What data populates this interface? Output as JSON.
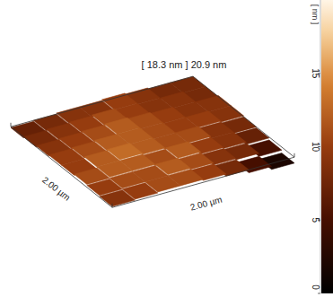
{
  "chart_data": {
    "type": "surface",
    "title": "[ 18.3 nm ] 20.9 nm",
    "x_label": "2.00 µm",
    "y_label": "2.00 µm",
    "cells": [
      [
        7,
        8,
        9,
        9,
        10,
        9,
        8,
        8
      ],
      [
        8,
        9,
        10,
        11,
        10,
        9,
        9,
        8
      ],
      [
        9,
        10,
        11,
        12,
        11,
        10,
        9,
        9
      ],
      [
        10,
        11,
        12,
        12,
        11,
        10,
        10,
        9
      ],
      [
        10,
        12,
        13,
        12,
        11,
        11,
        9,
        8
      ],
      [
        11,
        12,
        12,
        11,
        12,
        10,
        9,
        7
      ],
      [
        10,
        11,
        11,
        12,
        11,
        9,
        8,
        5
      ],
      [
        9,
        10,
        11,
        11,
        10,
        8,
        5,
        2
      ]
    ],
    "colorbar_label": "[ nm ]",
    "colorbar_range": [
      0,
      20
    ],
    "colorbar_ticks": [
      0,
      5,
      10,
      15
    ]
  }
}
